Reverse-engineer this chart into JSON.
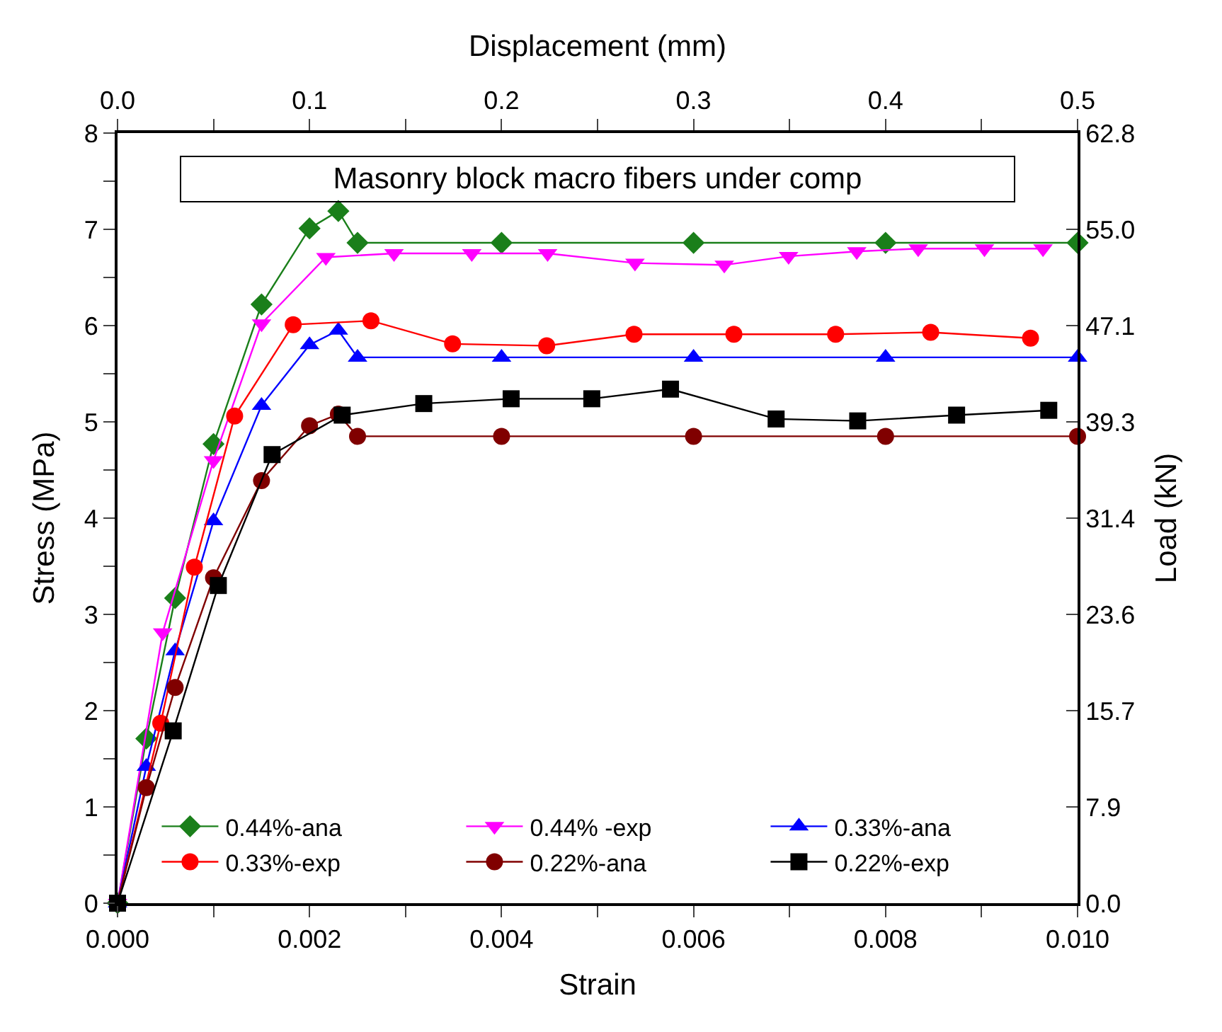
{
  "chart_data": {
    "type": "line",
    "title": "Masonry block macro fibers under comp",
    "xlabel": "Strain",
    "ylabel": "Stress (MPa)",
    "x2label": "Displacement (mm)",
    "y2label": "Load (kN)",
    "xlim": [
      0,
      0.01
    ],
    "xticks": [
      {
        "value": 0,
        "label": "0.000"
      },
      {
        "value": 0.001,
        "label": null
      },
      {
        "value": 0.002,
        "label": "0.002"
      },
      {
        "value": 0.003,
        "label": null
      },
      {
        "value": 0.004,
        "label": "0.004"
      },
      {
        "value": 0.005,
        "label": null
      },
      {
        "value": 0.006,
        "label": "0.006"
      },
      {
        "value": 0.007,
        "label": null
      },
      {
        "value": 0.008,
        "label": "0.008"
      },
      {
        "value": 0.009,
        "label": null
      },
      {
        "value": 0.01,
        "label": "0.010"
      }
    ],
    "x2lim": [
      0,
      0.5
    ],
    "x2ticks": [
      {
        "value": 0,
        "label": "0.0"
      },
      {
        "value": 0.05,
        "label": null
      },
      0.1,
      {
        "value": 0.15,
        "label": null
      },
      0.2,
      {
        "value": 0.25,
        "label": null
      },
      0.3,
      {
        "value": 0.35,
        "label": null
      },
      0.4,
      {
        "value": 0.45,
        "label": null
      },
      0.5
    ],
    "ylim": [
      0,
      8
    ],
    "yticks": [
      0,
      {
        "value": 0.5,
        "label": null
      },
      1,
      {
        "value": 1.5,
        "label": null
      },
      2,
      {
        "value": 2.5,
        "label": null
      },
      3,
      {
        "value": 3.5,
        "label": null
      },
      4,
      {
        "value": 4.5,
        "label": null
      },
      5,
      {
        "value": 5.5,
        "label": null
      },
      6,
      {
        "value": 6.5,
        "label": null
      },
      7,
      {
        "value": 7.5,
        "label": null
      },
      8
    ],
    "y2lim": [
      0,
      62.8
    ],
    "y2ticks": [
      {
        "value": 0,
        "label": "0.0"
      },
      {
        "value": 7.85,
        "label": "7.9"
      },
      15.7,
      {
        "value": 23.55,
        "label": "23.6"
      },
      31.4,
      {
        "value": 39.25,
        "label": "39.3"
      },
      47.1,
      {
        "value": 54.95,
        "label": "55.0"
      },
      62.8
    ],
    "legend": "bottom right",
    "series": [
      {
        "name": "0.44%-ana",
        "color": "#1a7f1a",
        "marker": "diamond",
        "x": [
          0,
          0.0003,
          0.0006,
          0.001,
          0.0015,
          0.002,
          0.0023,
          0.0025,
          0.004,
          0.006,
          0.008,
          0.01
        ],
        "values": [
          0,
          1.71,
          3.17,
          4.77,
          6.22,
          7.01,
          7.19,
          6.86,
          6.86,
          6.86,
          6.86,
          6.86
        ]
      },
      {
        "name": "0.44% -exp",
        "color": "#ff00ff",
        "marker": "triangle-down",
        "x": [
          0,
          0.00047,
          0.001,
          0.0015,
          0.00217,
          0.00288,
          0.00369,
          0.00448,
          0.00539,
          0.00632,
          0.00699,
          0.0077,
          0.00834,
          0.00903,
          0.00964
        ],
        "values": [
          0,
          2.81,
          4.6,
          6.02,
          6.71,
          6.75,
          6.75,
          6.75,
          6.65,
          6.63,
          6.72,
          6.77,
          6.8,
          6.8,
          6.8
        ]
      },
      {
        "name": "0.33%-ana",
        "color": "#0000ff",
        "marker": "triangle",
        "x": [
          0,
          0.0003,
          0.0006,
          0.001,
          0.0015,
          0.002,
          0.0023,
          0.0025,
          0.004,
          0.006,
          0.008,
          0.01
        ],
        "values": [
          0,
          1.42,
          2.62,
          3.97,
          5.17,
          5.8,
          5.95,
          5.67,
          5.67,
          5.67,
          5.67,
          5.67
        ]
      },
      {
        "name": "0.33%-exp",
        "color": "#ff0000",
        "marker": "circle",
        "x": [
          0,
          0.00045,
          0.0008,
          0.00122,
          0.00183,
          0.00264,
          0.00349,
          0.00447,
          0.00538,
          0.00642,
          0.00748,
          0.00847,
          0.00951
        ],
        "values": [
          0,
          1.87,
          3.49,
          5.06,
          6.01,
          6.05,
          5.81,
          5.79,
          5.91,
          5.91,
          5.91,
          5.93,
          5.87
        ]
      },
      {
        "name": "0.22%-ana",
        "color": "#800000",
        "marker": "circle",
        "x": [
          0,
          0.0003,
          0.0006,
          0.001,
          0.0015,
          0.002,
          0.0023,
          0.0025,
          0.004,
          0.006,
          0.008,
          0.01
        ],
        "values": [
          0,
          1.2,
          2.24,
          3.38,
          4.39,
          4.96,
          5.08,
          4.85,
          4.85,
          4.85,
          4.85,
          4.85
        ]
      },
      {
        "name": "0.22%-exp",
        "color": "#000000",
        "marker": "square",
        "x": [
          0,
          0.00058,
          0.00105,
          0.00161,
          0.00234,
          0.00319,
          0.0041,
          0.00494,
          0.00576,
          0.00686,
          0.00771,
          0.00874,
          0.0097
        ],
        "values": [
          0,
          1.79,
          3.3,
          4.66,
          5.07,
          5.19,
          5.24,
          5.24,
          5.34,
          5.03,
          5.01,
          5.07,
          5.12
        ]
      }
    ]
  }
}
